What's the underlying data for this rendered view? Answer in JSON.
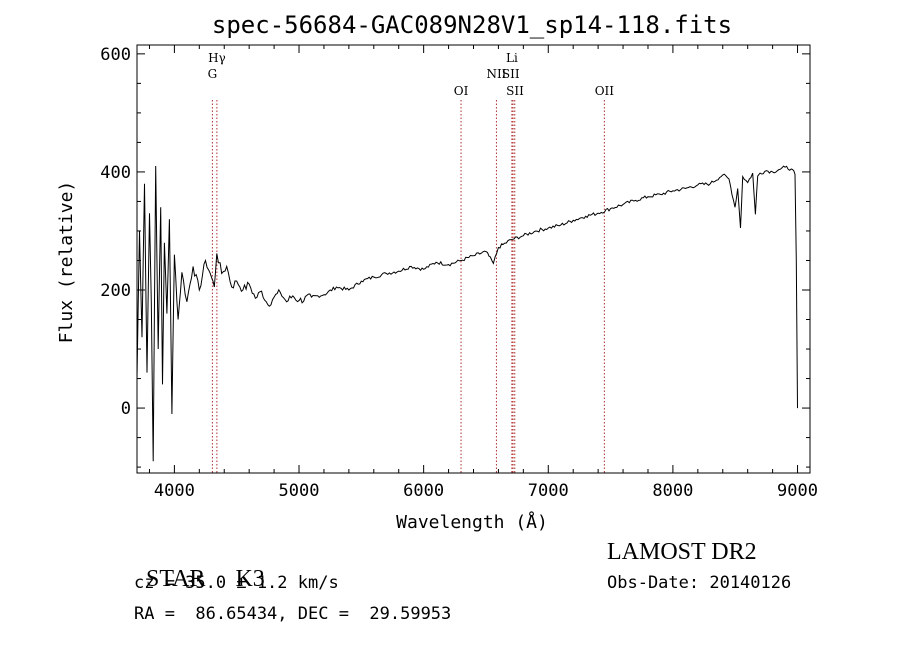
{
  "chart_data": {
    "type": "line",
    "title": "spec-56684-GAC089N28V1_sp14-118.fits",
    "xlabel": "Wavelength (Å)",
    "ylabel": "Flux (relative)",
    "xlim": [
      3700,
      9100
    ],
    "ylim": [
      -110,
      615
    ],
    "xticks": [
      4000,
      5000,
      6000,
      7000,
      8000,
      9000
    ],
    "yticks": [
      0,
      200,
      400,
      600
    ],
    "line_color": "#000000",
    "marker_color": "#b03030",
    "series": [
      {
        "x": [
          3700,
          3720,
          3740,
          3760,
          3780,
          3800,
          3815,
          3830,
          3850,
          3870,
          3890,
          3905,
          3920,
          3940,
          3960,
          3980,
          4000,
          4030,
          4060,
          4100,
          4150,
          4200,
          4250,
          4300,
          4320,
          4340,
          4380,
          4420,
          4460,
          4500,
          4550,
          4600,
          4650,
          4700,
          4750,
          4800,
          4850,
          4900,
          4950,
          5000,
          5100,
          5200,
          5300,
          5400,
          5500,
          5600,
          5700,
          5800,
          5900,
          6000,
          6100,
          6200,
          6300,
          6400,
          6500,
          6560,
          6600,
          6700,
          6800,
          6900,
          7000,
          7100,
          7200,
          7300,
          7400,
          7500,
          7600,
          7700,
          7800,
          7900,
          8000,
          8100,
          8200,
          8300,
          8400,
          8450,
          8498,
          8520,
          8542,
          8560,
          8600,
          8640,
          8662,
          8680,
          8700,
          8750,
          8800,
          8850,
          8900,
          8950,
          8980,
          8990,
          9000
        ],
        "y": [
          50,
          300,
          120,
          380,
          60,
          330,
          180,
          -90,
          410,
          100,
          340,
          40,
          280,
          160,
          320,
          -10,
          260,
          150,
          230,
          180,
          240,
          200,
          250,
          220,
          205,
          262,
          228,
          240,
          205,
          215,
          200,
          210,
          186,
          198,
          175,
          188,
          196,
          180,
          190,
          182,
          188,
          192,
          205,
          200,
          215,
          222,
          228,
          232,
          240,
          235,
          247,
          243,
          250,
          258,
          265,
          245,
          272,
          285,
          292,
          300,
          305,
          310,
          318,
          325,
          330,
          338,
          345,
          352,
          358,
          362,
          368,
          372,
          378,
          380,
          395,
          388,
          340,
          372,
          305,
          392,
          382,
          398,
          328,
          393,
          398,
          402,
          400,
          404,
          408,
          405,
          396,
          250,
          0
        ]
      }
    ],
    "lines": [
      {
        "label": "G",
        "x": 4305
      },
      {
        "label": "Hγ",
        "x": 4341
      },
      {
        "label": "OI",
        "x": 6300
      },
      {
        "label": "NII",
        "x": 6584
      },
      {
        "label": "Li",
        "x": 6708
      },
      {
        "label": "SII",
        "x": 6717
      },
      {
        "label": "SII",
        "x": 6731
      },
      {
        "label": "OII",
        "x": 7450
      }
    ]
  },
  "info": {
    "object_class": "STAR",
    "subclass": "K3",
    "survey": "LAMOST DR2",
    "cz": "cz = 35.0 ± 1.2 km/s",
    "obs_date": "Obs-Date: 20140126",
    "radec": "RA =  86.65434, DEC =  29.59953"
  }
}
